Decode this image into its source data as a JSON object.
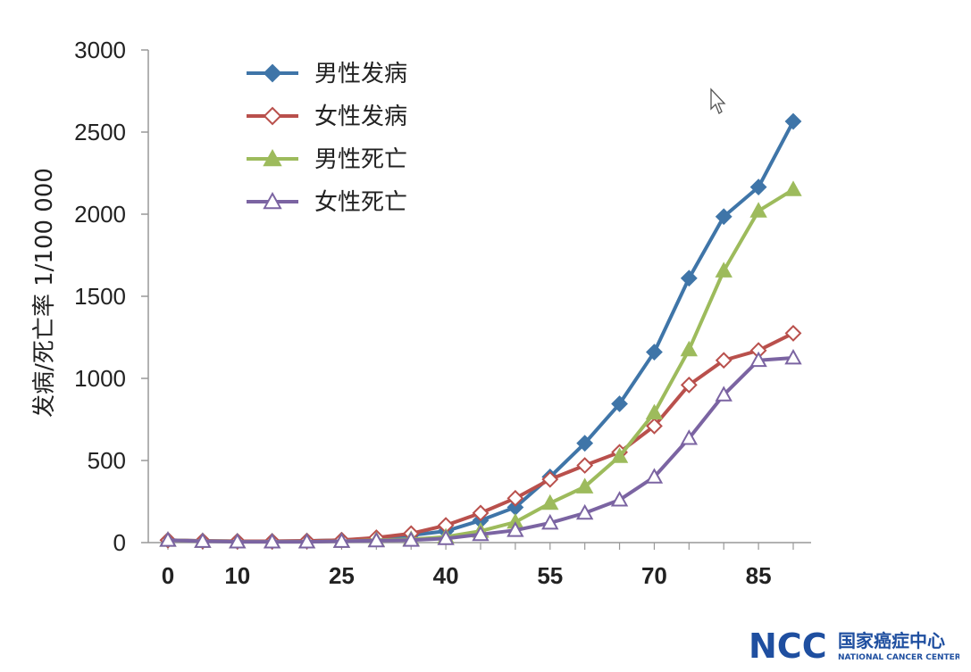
{
  "chart_data": {
    "type": "line",
    "title": "",
    "xlabel": "",
    "ylabel": "发病/死亡率 1/100 000",
    "ylim": [
      0,
      3000
    ],
    "yticks": [
      0,
      500,
      1000,
      1500,
      2000,
      2500,
      3000
    ],
    "xticks": [
      {
        "value": 0,
        "label": "0"
      },
      {
        "value": 10,
        "label": "10"
      },
      {
        "value": 25,
        "label": "25"
      },
      {
        "value": 40,
        "label": "40"
      },
      {
        "value": 55,
        "label": "55"
      },
      {
        "value": 70,
        "label": "70"
      },
      {
        "value": 85,
        "label": "85"
      }
    ],
    "x": [
      0,
      5,
      10,
      15,
      20,
      25,
      30,
      35,
      40,
      45,
      50,
      55,
      60,
      65,
      70,
      75,
      80,
      85,
      90
    ],
    "legend_position": "top-left",
    "grid": false,
    "series": [
      {
        "name": "男性发病",
        "color": "#3f75a8",
        "marker": "diamond",
        "values": [
          15,
          10,
          8,
          8,
          10,
          15,
          25,
          45,
          70,
          135,
          215,
          400,
          605,
          845,
          1160,
          1610,
          1985,
          2165,
          2565
        ]
      },
      {
        "name": "女性发病",
        "color": "#b9504c",
        "marker": "diamond-open",
        "values": [
          15,
          10,
          8,
          8,
          10,
          15,
          30,
          55,
          105,
          180,
          270,
          385,
          470,
          550,
          710,
          960,
          1110,
          1170,
          1275
        ]
      },
      {
        "name": "男性死亡",
        "color": "#9dbb5c",
        "marker": "triangle",
        "values": [
          15,
          8,
          5,
          5,
          5,
          8,
          15,
          20,
          35,
          70,
          125,
          240,
          340,
          525,
          790,
          1175,
          1655,
          2020,
          2150
        ]
      },
      {
        "name": "女性死亡",
        "color": "#7b64a2",
        "marker": "triangle-open",
        "values": [
          15,
          8,
          5,
          5,
          5,
          8,
          12,
          15,
          25,
          50,
          75,
          120,
          180,
          260,
          400,
          635,
          900,
          1110,
          1125
        ]
      }
    ]
  },
  "logo": {
    "mark": "NCC",
    "name_cn": "国家癌症中心",
    "name_en": "NATIONAL CANCER CENTER"
  }
}
